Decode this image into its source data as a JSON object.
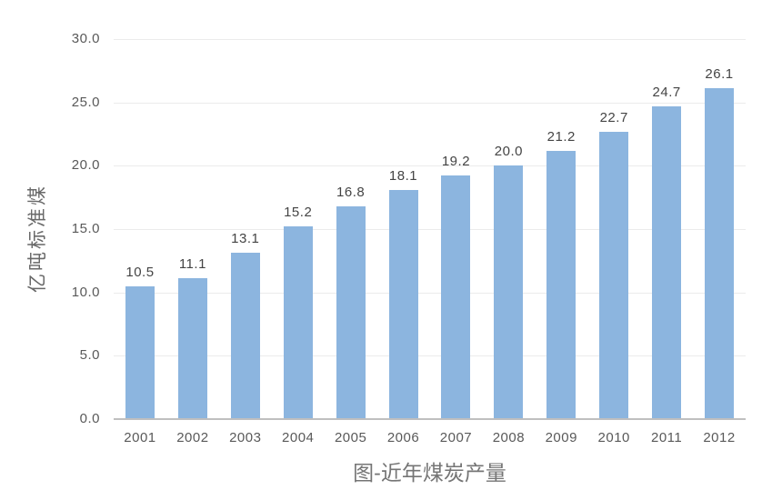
{
  "chart_data": {
    "type": "bar",
    "title": "图-近年煤炭产量",
    "ylabel": "亿吨标准煤",
    "xlabel": "",
    "categories": [
      "2001",
      "2002",
      "2003",
      "2004",
      "2005",
      "2006",
      "2007",
      "2008",
      "2009",
      "2010",
      "2011",
      "2012"
    ],
    "values": [
      10.5,
      11.1,
      13.1,
      15.2,
      16.8,
      18.1,
      19.2,
      20.0,
      21.2,
      22.7,
      24.7,
      26.1
    ],
    "data_labels": [
      "10.5",
      "11.1",
      "13.1",
      "15.2",
      "16.8",
      "18.1",
      "19.2",
      "20.0",
      "21.2",
      "22.7",
      "24.7",
      "26.1"
    ],
    "ylim": [
      0,
      30
    ],
    "ytick_step": 5,
    "ytick_labels": [
      "0.0",
      "5.0",
      "10.0",
      "15.0",
      "20.0",
      "25.0",
      "30.0"
    ],
    "grid": true,
    "legend": "none",
    "colors": {
      "bar": "#8CB5DF",
      "gridline": "#EBEBEB",
      "axis_line": "#BFBFBF",
      "tick_label": "#595959",
      "data_label": "#444444",
      "title": "#757575",
      "y_axis_title": "#696969"
    }
  }
}
